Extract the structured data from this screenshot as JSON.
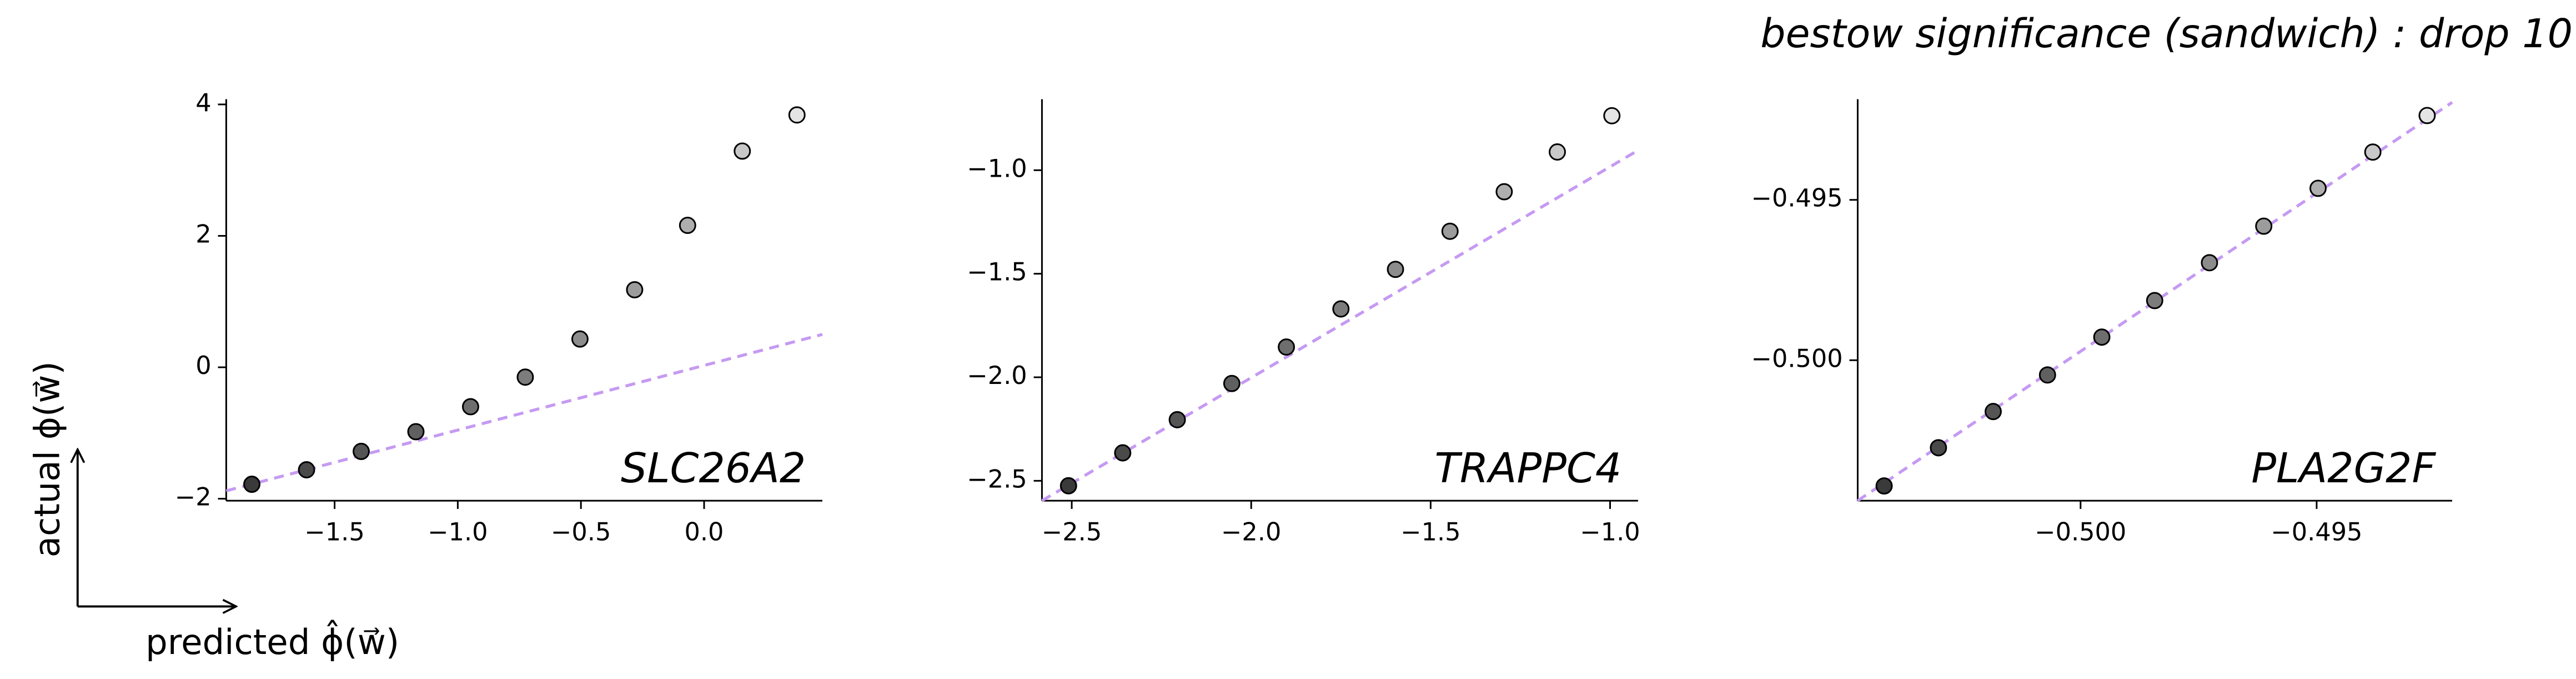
{
  "title": "bestow significance (sandwich) : drop 10",
  "y_label": "actual  ϕ(w⃗)",
  "x_label": "predicted  ϕ̂(w⃗)",
  "chart_data": [
    {
      "type": "scatter",
      "label": "SLC26A2",
      "x": [
        -1.836,
        -1.614,
        -1.392,
        -1.17,
        -0.948,
        -0.726,
        -0.504,
        -0.282,
        -0.067,
        0.155,
        0.377
      ],
      "values": [
        -1.78,
        -1.56,
        -1.28,
        -0.98,
        -0.6,
        -0.15,
        0.43,
        1.18,
        2.16,
        3.29,
        3.84
      ],
      "colors": [
        "#3a3a3a",
        "#4a4a4a",
        "#555555",
        "#606060",
        "#6e6e6e",
        "#7c7c7c",
        "#8c8c8c",
        "#9c9c9c",
        "#aeaeae",
        "#c8c8c8",
        "#e4e4e4"
      ],
      "edge_color": "#000000",
      "reference_line": {
        "x": [
          -1.94,
          0.48
        ],
        "y": [
          -1.88,
          0.5
        ],
        "color": "#c59af2",
        "dashed": true
      },
      "xlim": [
        -1.94,
        0.48
      ],
      "ylim": [
        -2.03,
        4.08
      ],
      "xticks": [
        {
          "value": -1.5,
          "label": "−1.5"
        },
        {
          "value": -1.0,
          "label": "−1.0"
        },
        {
          "value": -0.5,
          "label": "−0.5"
        },
        {
          "value": 0,
          "label": "0.0"
        }
      ],
      "yticks": [
        {
          "value": -2,
          "label": "−2"
        },
        0,
        2,
        4
      ]
    },
    {
      "type": "scatter",
      "label": "TRAPPC4",
      "x": [
        -2.509,
        -2.358,
        -2.206,
        -2.054,
        -1.902,
        -1.75,
        -1.598,
        -1.446,
        -1.295,
        -1.147,
        -0.995
      ],
      "values": [
        -2.524,
        -2.365,
        -2.205,
        -2.03,
        -1.854,
        -1.67,
        -1.479,
        -1.295,
        -1.104,
        -0.912,
        -0.737
      ],
      "colors": [
        "#3a3a3a",
        "#4a4a4a",
        "#555555",
        "#606060",
        "#6e6e6e",
        "#7c7c7c",
        "#8c8c8c",
        "#9c9c9c",
        "#aeaeae",
        "#c8c8c8",
        "#e4e4e4"
      ],
      "edge_color": "#000000",
      "reference_line": {
        "x": [
          -2.583,
          -0.922
        ],
        "y": [
          -2.596,
          -0.904
        ],
        "color": "#c59af2",
        "dashed": true
      },
      "xlim": [
        -2.583,
        -0.922
      ],
      "ylim": [
        -2.596,
        -0.657
      ],
      "xticks": [
        {
          "value": -2.5,
          "label": "−2.5"
        },
        {
          "value": -2.0,
          "label": "−2.0"
        },
        {
          "value": -1.5,
          "label": "−1.5"
        },
        {
          "value": -1.0,
          "label": "−1.0"
        }
      ],
      "yticks": [
        {
          "value": -2.5,
          "label": "−2.5"
        },
        {
          "value": -2.0,
          "label": "−2.0"
        },
        {
          "value": -1.5,
          "label": "−1.5"
        },
        {
          "value": -1.0,
          "label": "−1.0"
        }
      ]
    },
    {
      "type": "scatter",
      "label": "PLA2G2F",
      "x": [
        -0.50416,
        -0.50301,
        -0.50185,
        -0.5007,
        -0.49955,
        -0.49843,
        -0.49727,
        -0.49612,
        -0.49497,
        -0.49381,
        -0.49266
      ],
      "values": [
        -0.50392,
        -0.50273,
        -0.5016,
        -0.50046,
        -0.49928,
        -0.49814,
        -0.49696,
        -0.49582,
        -0.49464,
        -0.49351,
        -0.49237
      ],
      "colors": [
        "#3a3a3a",
        "#4a4a4a",
        "#555555",
        "#606060",
        "#6e6e6e",
        "#7c7c7c",
        "#8c8c8c",
        "#9c9c9c",
        "#aeaeae",
        "#c8c8c8",
        "#e4e4e4"
      ],
      "edge_color": "#000000",
      "reference_line": {
        "x": [
          -0.50472,
          -0.49213
        ],
        "y": [
          -0.50438,
          -0.49196
        ],
        "color": "#c59af2",
        "dashed": true
      },
      "xlim": [
        -0.50472,
        -0.49213
      ],
      "ylim": [
        -0.50438,
        -0.49186
      ],
      "xticks": [
        {
          "value": -0.5,
          "label": "−0.500"
        },
        {
          "value": -0.495,
          "label": "−0.495"
        }
      ],
      "yticks": [
        {
          "value": -0.5,
          "label": "−0.500"
        },
        {
          "value": -0.495,
          "label": "−0.495"
        }
      ]
    }
  ]
}
